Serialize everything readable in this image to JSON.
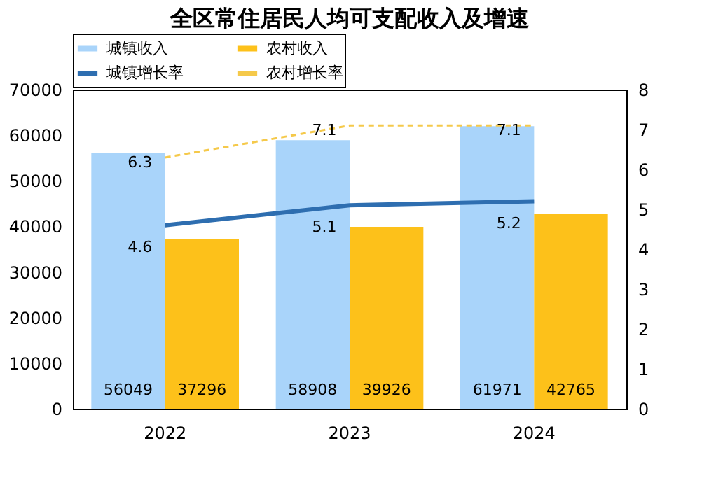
{
  "chart_data": {
    "type": "bar",
    "title": "全区常住居民人均可支配收入及增速",
    "categories": [
      "2022",
      "2023",
      "2024"
    ],
    "series": [
      {
        "name": "城镇收入",
        "axis": "y",
        "color": "#a9d4fa",
        "values": [
          56049,
          58908,
          61971
        ]
      },
      {
        "name": "农村收入",
        "axis": "y",
        "color": "#fdc11a",
        "values": [
          37296,
          39926,
          42765
        ]
      },
      {
        "name": "城镇增长率",
        "type": "line",
        "axis": "y2",
        "color": "#2e6eb0",
        "line_style": "solid",
        "values": [
          4.6,
          5.1,
          5.2
        ]
      },
      {
        "name": "农村增长率",
        "type": "line",
        "axis": "y2",
        "color": "#f5c94a",
        "line_style": "dashed",
        "values": [
          6.3,
          7.1,
          7.1
        ]
      }
    ],
    "ylim": [
      0,
      70000
    ],
    "yticks": [
      0,
      10000,
      20000,
      30000,
      40000,
      50000,
      60000,
      70000
    ],
    "y2lim": [
      0,
      8
    ],
    "y2ticks": [
      0,
      1,
      2,
      3,
      4,
      5,
      6,
      7,
      8
    ],
    "grid": false,
    "legend": "top",
    "data_labels": true
  }
}
